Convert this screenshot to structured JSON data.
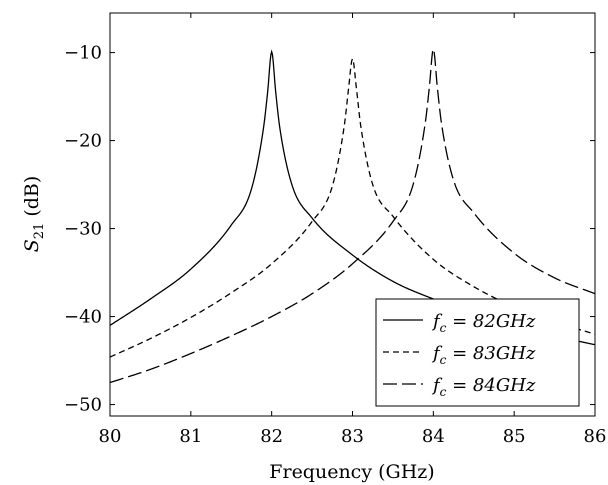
{
  "chart_data": {
    "type": "line",
    "title": "",
    "xlabel": "Frequency (GHz)",
    "ylabel": "S21 (dB)",
    "ylabel_main": "S",
    "ylabel_sub": "21",
    "ylabel_unit": " (dB)",
    "xlim": [
      80,
      86
    ],
    "ylim": [
      -51.3,
      -5.5
    ],
    "xticks": [
      80,
      81,
      82,
      83,
      84,
      85,
      86
    ],
    "yticks": [
      -10,
      -20,
      -30,
      -40,
      -50
    ],
    "xtick_labels": [
      "80",
      "81",
      "82",
      "83",
      "84",
      "85",
      "86"
    ],
    "ytick_labels": [
      "−10",
      "−20",
      "−30",
      "−40",
      "−50"
    ],
    "grid": false,
    "legend_position": "bottom-right",
    "series": [
      {
        "name": "fc = 82GHz",
        "legend_label": "f",
        "legend_sub": "c",
        "legend_value": " = 82GHz",
        "dash": "solid",
        "x": [
          80.0,
          80.5,
          81.0,
          81.5,
          81.75,
          81.9,
          81.95,
          82.0,
          82.05,
          82.1,
          82.25,
          82.5,
          83.0,
          83.5,
          84.0,
          84.5,
          85.0,
          85.5,
          86.0
        ],
        "y": [
          -41.0,
          -38.0,
          -34.6,
          -29.6,
          -25.5,
          -18.5,
          -14.5,
          -9.9,
          -14.5,
          -18.5,
          -25.0,
          -28.8,
          -33.0,
          -36.0,
          -38.0,
          -39.6,
          -41.0,
          -42.2,
          -43.2
        ]
      },
      {
        "name": "fc = 83GHz",
        "legend_label": "f",
        "legend_sub": "c",
        "legend_value": " = 83GHz",
        "dash": "dashed",
        "x": [
          80.0,
          80.5,
          81.0,
          81.5,
          82.0,
          82.5,
          82.75,
          82.9,
          82.95,
          83.0,
          83.05,
          83.1,
          83.25,
          83.5,
          84.0,
          84.5,
          85.0,
          85.5,
          86.0
        ],
        "y": [
          -44.6,
          -42.5,
          -40.1,
          -37.3,
          -34.0,
          -29.2,
          -25.2,
          -18.2,
          -14.2,
          -10.7,
          -14.2,
          -18.2,
          -25.0,
          -28.6,
          -33.5,
          -36.6,
          -38.9,
          -40.6,
          -42.0
        ]
      },
      {
        "name": "fc = 84GHz",
        "legend_label": "f",
        "legend_sub": "c",
        "legend_value": " = 84GHz",
        "dash": "longdash",
        "x": [
          80.0,
          80.5,
          81.0,
          81.5,
          82.0,
          82.5,
          83.0,
          83.5,
          83.75,
          83.9,
          83.95,
          84.0,
          84.05,
          84.1,
          84.25,
          84.5,
          85.0,
          85.5,
          86.0
        ],
        "y": [
          -47.5,
          -46.0,
          -44.2,
          -42.2,
          -40.0,
          -37.4,
          -34.0,
          -29.2,
          -25.0,
          -18.0,
          -14.0,
          -9.6,
          -14.0,
          -18.0,
          -24.5,
          -28.2,
          -32.8,
          -35.6,
          -37.4
        ]
      }
    ]
  }
}
